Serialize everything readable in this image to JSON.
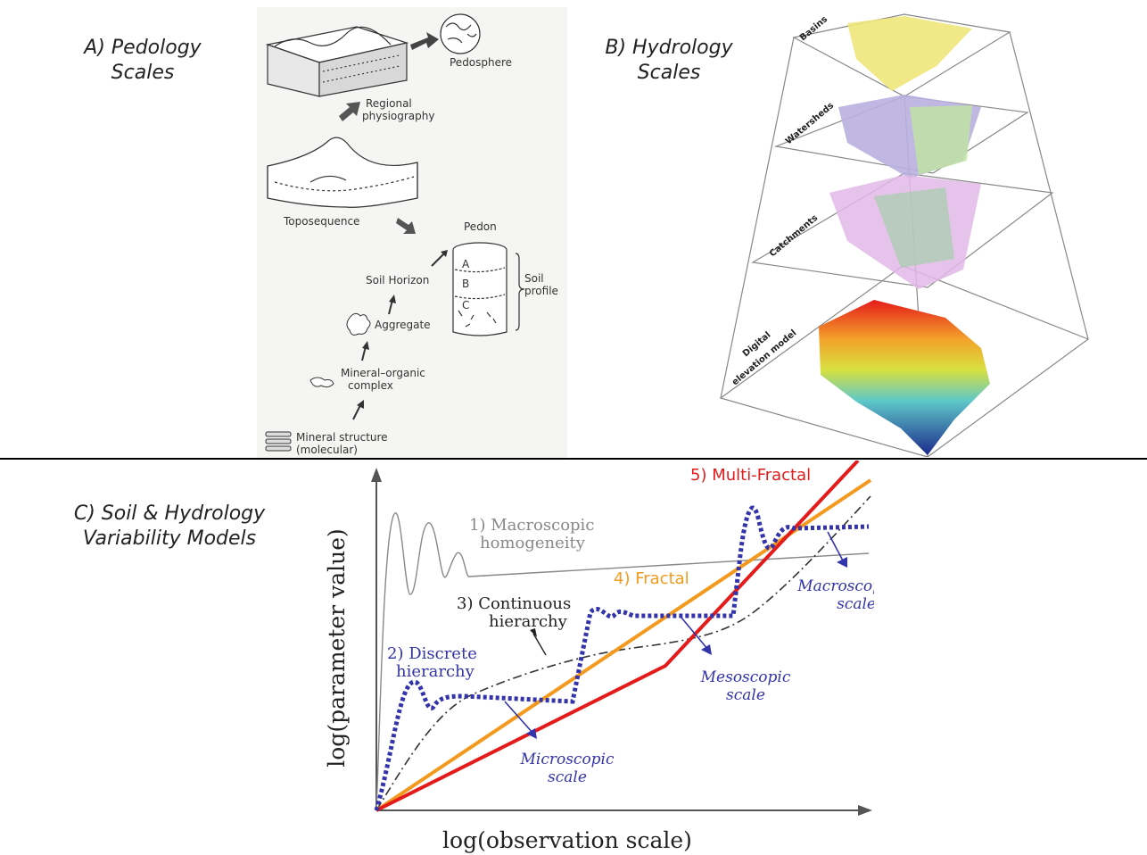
{
  "panels": {
    "a": {
      "line1": "A) Pedology",
      "line2": "Scales"
    },
    "b": {
      "line1": "B) Hydrology",
      "line2": "Scales"
    },
    "c": {
      "line1": "C) Soil & Hydrology",
      "line2": "Variability Models"
    }
  },
  "pedology": {
    "pedosphere": "Pedosphere",
    "regional_1": "Regional",
    "regional_2": "physiography",
    "toposequence": "Toposequence",
    "pedon": "Pedon",
    "horizon_a": "A",
    "horizon_b": "B",
    "horizon_c": "C",
    "soil_profile_1": "Soil",
    "soil_profile_2": "profile",
    "soil_horizon": "Soil Horizon",
    "aggregate": "Aggregate",
    "mineral_organic_1": "Mineral–organic",
    "mineral_organic_2": "complex",
    "mineral_structure_1": "Mineral structure",
    "mineral_structure_2": "(molecular)"
  },
  "hydrology": {
    "layers": [
      "Basins",
      "Watersheds",
      "Catchments",
      "Digital",
      "elevation model"
    ]
  },
  "chart_data": {
    "type": "line",
    "xlabel": "log(observation scale)",
    "ylabel": "log(parameter value)",
    "models": [
      {
        "name": "1) Macroscopic",
        "name2": "homogeneity",
        "color": "#888888"
      },
      {
        "name": "2) Discrete",
        "name2": "hierarchy",
        "color": "#3333aa"
      },
      {
        "name": "3) Continuous",
        "name2": "hierarchy",
        "color": "#222222"
      },
      {
        "name": "4) Fractal",
        "color": "#f39a1e"
      },
      {
        "name": "5) Multi-Fractal",
        "color": "#e41b1b"
      }
    ],
    "scale_annotations": [
      {
        "line1": "Microscopic",
        "line2": "scale"
      },
      {
        "line1": "Mesoscopic",
        "line2": "scale"
      },
      {
        "line1": "Macroscopic",
        "line2": "scale"
      }
    ]
  }
}
